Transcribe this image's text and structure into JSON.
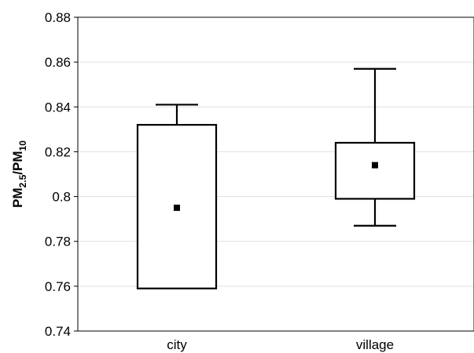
{
  "chart_data": {
    "type": "box",
    "categories": [
      "city",
      "village"
    ],
    "series": [
      {
        "values": [
          {
            "category": "city",
            "whisker_low": 0.759,
            "box_low": 0.759,
            "mean": 0.795,
            "box_high": 0.832,
            "whisker_high": 0.841
          },
          {
            "category": "village",
            "whisker_low": 0.787,
            "box_low": 0.799,
            "mean": 0.814,
            "box_high": 0.824,
            "whisker_high": 0.857
          }
        ]
      }
    ],
    "ylabel": {
      "main": "PM",
      "sub1": "2.5",
      "slash": "/PM",
      "sub2": "10"
    },
    "ylim": [
      0.74,
      0.88
    ],
    "yticks": [
      0.74,
      0.76,
      0.78,
      0.8,
      0.82,
      0.84,
      0.86,
      0.88
    ],
    "ytick_labels": [
      "0.74",
      "0.76",
      "0.78",
      "0.8",
      "0.82",
      "0.84",
      "0.86",
      "0.88"
    ],
    "grid": true,
    "colors": {
      "box_fill": "#ffffff",
      "stroke": "#000000",
      "grid": "#e0e0e0"
    }
  }
}
